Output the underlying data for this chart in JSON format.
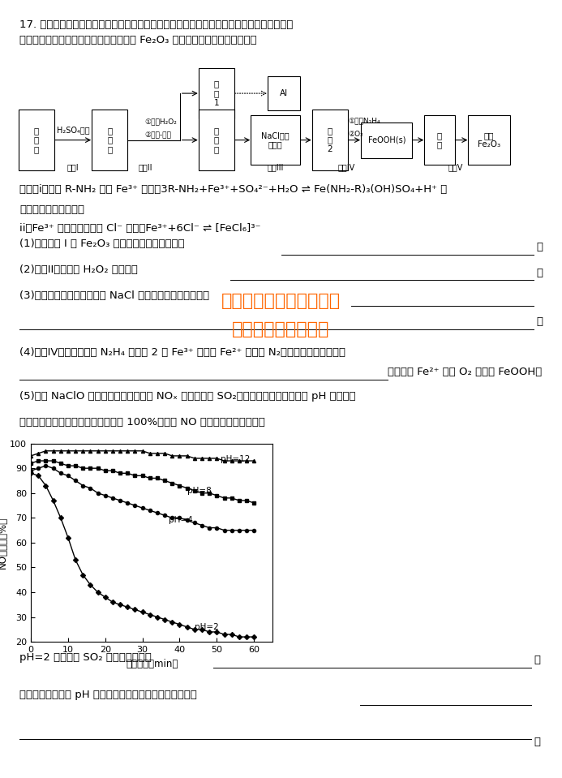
{
  "bg_color": "#ffffff",
  "text_color": "#000000",
  "fs_main": 9.5,
  "fs_small": 7.5,
  "fs_tiny": 7.0,
  "watermark1_color": "#FF6600",
  "watermark2_color": "#FF6600",
  "chart": {
    "xlabel": "反应时间（min）",
    "ylabel": "NO脱除率（%）",
    "xlim": [
      0,
      65
    ],
    "ylim": [
      20,
      100
    ],
    "yticks": [
      20,
      30,
      40,
      50,
      60,
      70,
      80,
      90,
      100
    ],
    "xticks": [
      0,
      10,
      20,
      30,
      40,
      50,
      60
    ],
    "ph12_x": [
      0,
      2,
      4,
      6,
      8,
      10,
      12,
      14,
      16,
      18,
      20,
      22,
      24,
      26,
      28,
      30,
      32,
      34,
      36,
      38,
      40,
      42,
      44,
      46,
      48,
      50,
      52,
      54,
      56,
      58,
      60
    ],
    "ph12_y": [
      95,
      96,
      97,
      97,
      97,
      97,
      97,
      97,
      97,
      97,
      97,
      97,
      97,
      97,
      97,
      97,
      96,
      96,
      96,
      95,
      95,
      95,
      94,
      94,
      94,
      94,
      93,
      93,
      93,
      93,
      93
    ],
    "ph8_x": [
      0,
      2,
      4,
      6,
      8,
      10,
      12,
      14,
      16,
      18,
      20,
      22,
      24,
      26,
      28,
      30,
      32,
      34,
      36,
      38,
      40,
      42,
      44,
      46,
      48,
      50,
      52,
      54,
      56,
      58,
      60
    ],
    "ph8_y": [
      92,
      93,
      93,
      93,
      92,
      91,
      91,
      90,
      90,
      90,
      89,
      89,
      88,
      88,
      87,
      87,
      86,
      86,
      85,
      84,
      83,
      82,
      81,
      80,
      80,
      79,
      78,
      78,
      77,
      77,
      76
    ],
    "ph4_x": [
      0,
      2,
      4,
      6,
      8,
      10,
      12,
      14,
      16,
      18,
      20,
      22,
      24,
      26,
      28,
      30,
      32,
      34,
      36,
      38,
      40,
      42,
      44,
      46,
      48,
      50,
      52,
      54,
      56,
      58,
      60
    ],
    "ph4_y": [
      89,
      90,
      91,
      90,
      88,
      87,
      85,
      83,
      82,
      80,
      79,
      78,
      77,
      76,
      75,
      74,
      73,
      72,
      71,
      70,
      70,
      69,
      68,
      67,
      66,
      66,
      65,
      65,
      65,
      65,
      65
    ],
    "ph2_x": [
      0,
      2,
      4,
      6,
      8,
      10,
      12,
      14,
      16,
      18,
      20,
      22,
      24,
      26,
      28,
      30,
      32,
      34,
      36,
      38,
      40,
      42,
      44,
      46,
      48,
      50,
      52,
      54,
      56,
      58,
      60
    ],
    "ph2_y": [
      88,
      87,
      83,
      77,
      70,
      62,
      53,
      47,
      43,
      40,
      38,
      36,
      35,
      34,
      33,
      32,
      31,
      30,
      29,
      28,
      27,
      26,
      25,
      25,
      24,
      24,
      23,
      23,
      22,
      22,
      22
    ]
  }
}
